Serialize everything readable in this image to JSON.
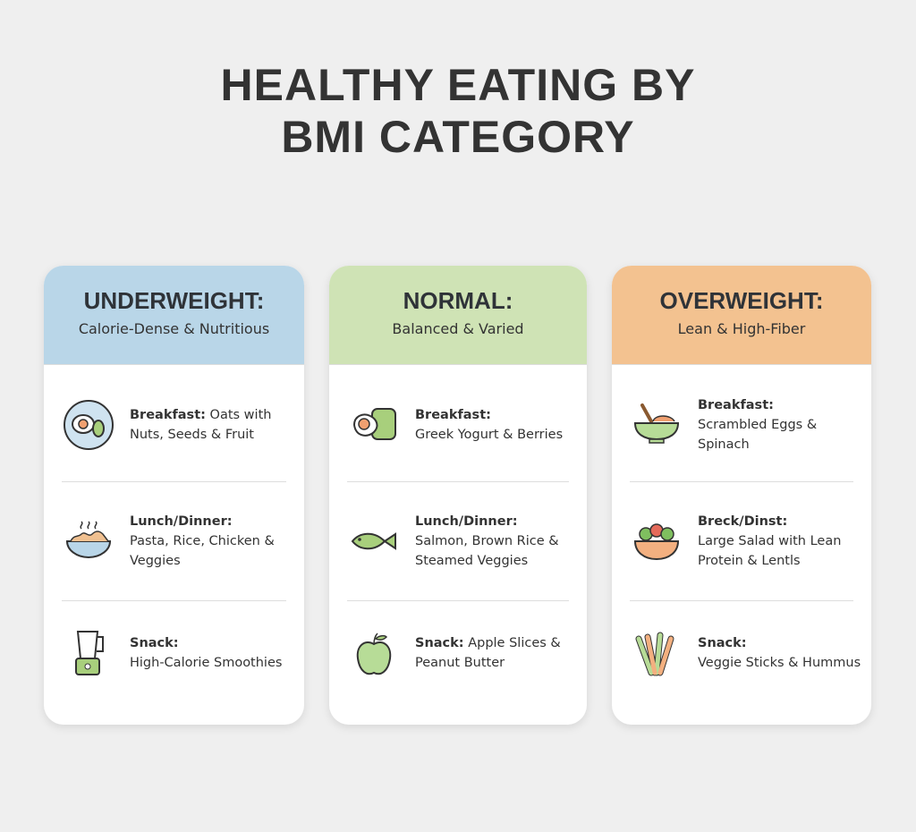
{
  "header": {
    "title": "HEALTHY EATING BY BMI CATEGORY"
  },
  "cards": [
    {
      "title": "UNDERWEIGHT:",
      "subtitle": "Calorie-Dense & Nutritious",
      "items": [
        {
          "label": "Breakfast:",
          "text": "Oats with Nuts, Seeds & Fruit"
        },
        {
          "label": "Lunch/Dinner:",
          "text": "Pasta, Rice, Chicken & Veggies"
        },
        {
          "label": "Snack:",
          "text": "High-Calorie Smoothies"
        }
      ]
    },
    {
      "title": "NORMAL:",
      "subtitle": "Balanced & Varied",
      "items": [
        {
          "label": "Breakfast:",
          "text": "Greek Yogurt & Berries"
        },
        {
          "label": "Lunch/Dinner:",
          "text": "Salmon, Brown Rice & Steamed Veggies"
        },
        {
          "label": "Snack:",
          "text": "Apple Slices & Peanut Butter"
        }
      ]
    },
    {
      "title": "OVERWEIGHT:",
      "subtitle": "Lean & High-Fiber",
      "items": [
        {
          "label": "Breakfast:",
          "text": "Scrambled Eggs & Spinach"
        },
        {
          "label": "Breck/Dinst:",
          "text": "Large Salad with Lean Protein & Lentls"
        },
        {
          "label": "Snack:",
          "text": "Veggie Sticks & Hummus"
        }
      ]
    }
  ]
}
